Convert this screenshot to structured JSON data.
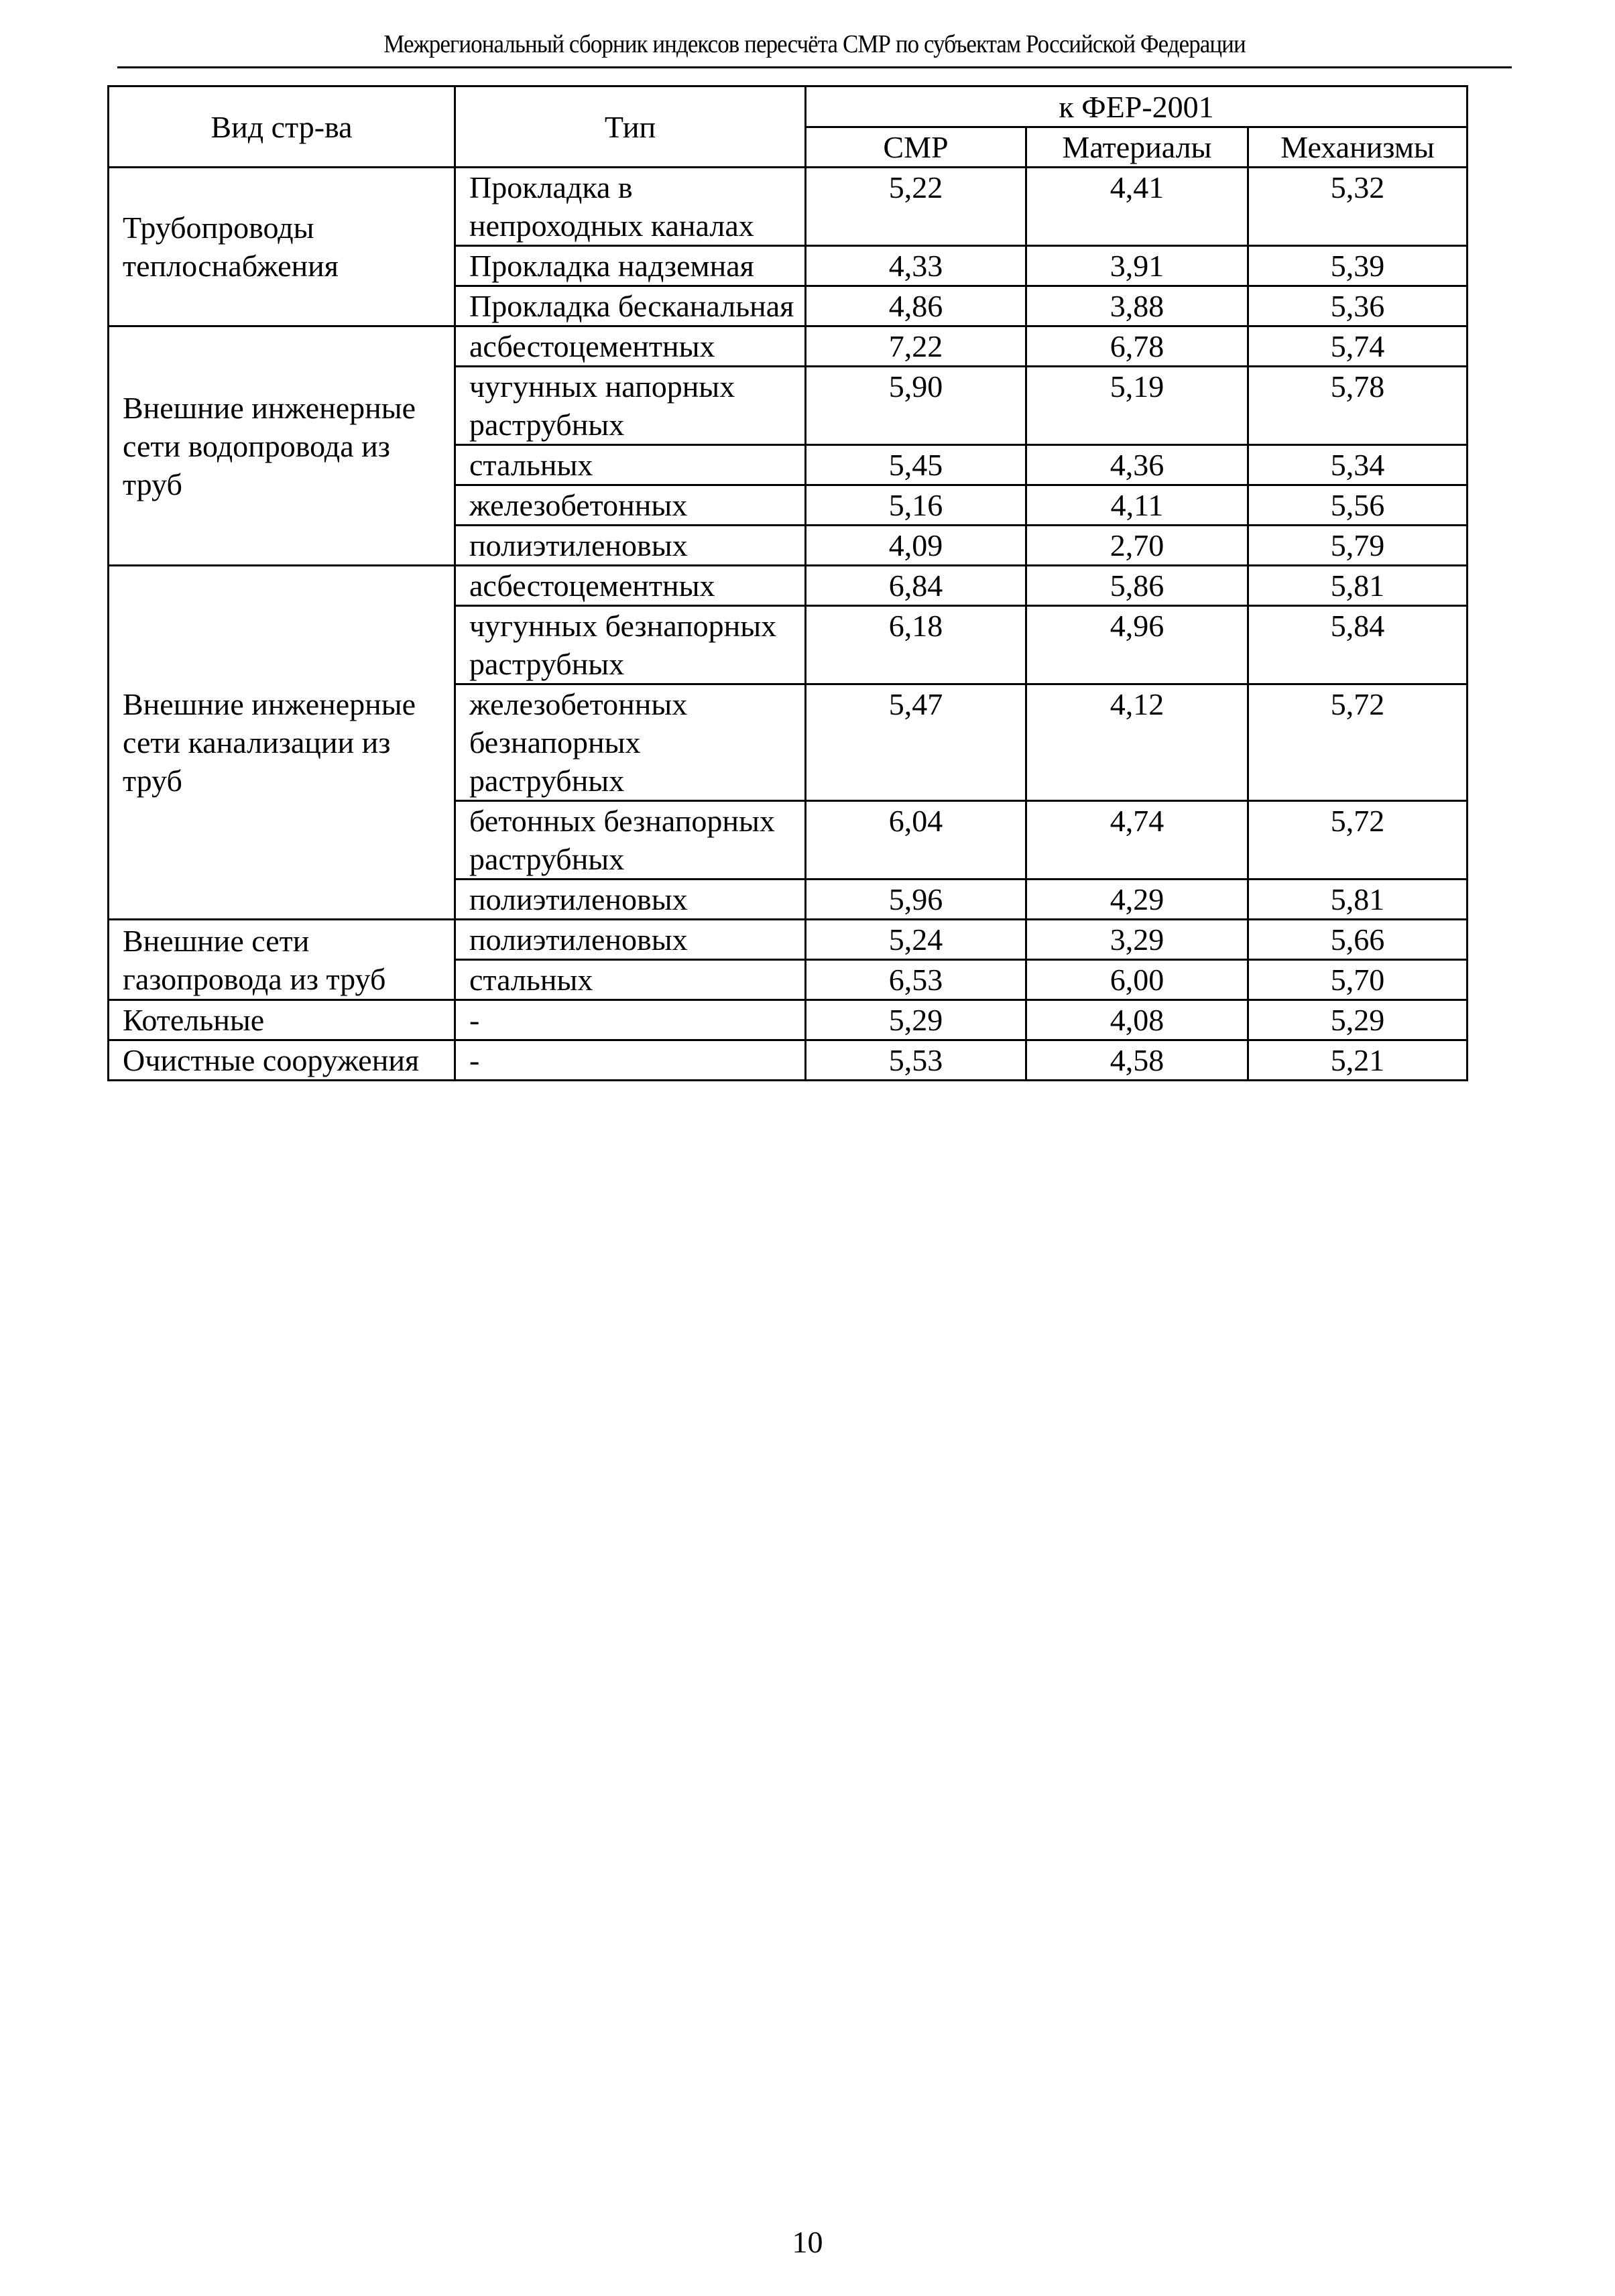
{
  "running_head": "Межрегиональный сборник индексов пересчёта СМР  по субъектам Российской Федерации",
  "table": {
    "headers": {
      "kind": "Вид стр-ва",
      "type": "Тип",
      "group": "к ФЕР-2001",
      "smr": "СМР",
      "materials": "Материалы",
      "machines": "Механизмы"
    },
    "groups": [
      {
        "kind": "Трубопроводы теплоснабжения",
        "rows": [
          {
            "type": "Прокладка в непроходных каналах",
            "smr": "5,22",
            "materials": "4,41",
            "machines": "5,32"
          },
          {
            "type": "Прокладка надземная",
            "smr": "4,33",
            "materials": "3,91",
            "machines": "5,39"
          },
          {
            "type": "Прокладка бесканальная",
            "smr": "4,86",
            "materials": "3,88",
            "machines": "5,36"
          }
        ]
      },
      {
        "kind": "Внешние инженерные сети водопровода из труб",
        "rows": [
          {
            "type": "асбестоцементных",
            "smr": "7,22",
            "materials": "6,78",
            "machines": "5,74"
          },
          {
            "type": "чугунных напорных раструбных",
            "smr": "5,90",
            "materials": "5,19",
            "machines": "5,78"
          },
          {
            "type": "стальных",
            "smr": "5,45",
            "materials": "4,36",
            "machines": "5,34"
          },
          {
            "type": "железобетонных",
            "smr": "5,16",
            "materials": "4,11",
            "machines": "5,56"
          },
          {
            "type": "полиэтиленовых",
            "smr": "4,09",
            "materials": "2,70",
            "machines": "5,79"
          }
        ]
      },
      {
        "kind": "Внешние инженерные сети канализации из труб",
        "rows": [
          {
            "type": "асбестоцементных",
            "smr": "6,84",
            "materials": "5,86",
            "machines": "5,81"
          },
          {
            "type": "чугунных безнапорных раструбных",
            "smr": "6,18",
            "materials": "4,96",
            "machines": "5,84"
          },
          {
            "type": "железобетонных безнапорных раструбных",
            "smr": "5,47",
            "materials": "4,12",
            "machines": "5,72"
          },
          {
            "type": "бетонных безнапорных раструбных",
            "smr": "6,04",
            "materials": "4,74",
            "machines": "5,72"
          },
          {
            "type": "полиэтиленовых",
            "smr": "5,96",
            "materials": "4,29",
            "machines": "5,81"
          }
        ]
      },
      {
        "kind": "Внешние сети газопровода из труб",
        "rows": [
          {
            "type": "полиэтиленовых",
            "smr": "5,24",
            "materials": "3,29",
            "machines": "5,66"
          },
          {
            "type": "стальных",
            "smr": "6,53",
            "materials": "6,00",
            "machines": "5,70"
          }
        ]
      },
      {
        "kind": "Котельные",
        "rows": [
          {
            "type": "-",
            "smr": "5,29",
            "materials": "4,08",
            "machines": "5,29"
          }
        ]
      },
      {
        "kind": "Очистные сооружения",
        "rows": [
          {
            "type": "-",
            "smr": "5,53",
            "materials": "4,58",
            "machines": "5,21"
          }
        ]
      }
    ]
  },
  "page_number": "10"
}
